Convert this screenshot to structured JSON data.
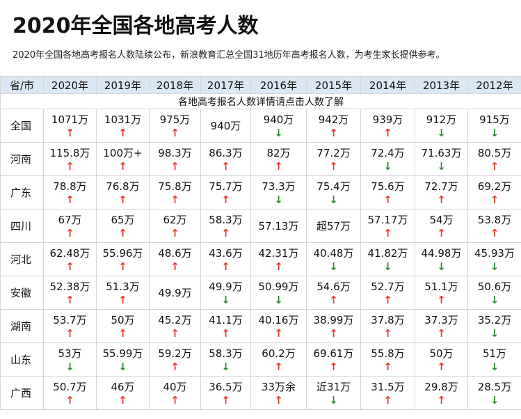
{
  "title": "2020年全国各地高考人数",
  "subtitle": "2020年全国各地高考报名人数陆续公布，新浪教育汇总全国31地历年高考报名人数，为考生家长提供参考。",
  "table": {
    "header_first": "省/市",
    "years": [
      "2020年",
      "2019年",
      "2018年",
      "2017年",
      "2016年",
      "2015年",
      "2014年",
      "2013年",
      "2012年"
    ],
    "note": "各地高考报名人数详情请点击人数了解",
    "rows": [
      {
        "name": "全国",
        "cells": [
          {
            "v": "1071万",
            "a": "up"
          },
          {
            "v": "1031万",
            "a": "up"
          },
          {
            "v": "975万",
            "a": "up"
          },
          {
            "v": "940万",
            "a": ""
          },
          {
            "v": "940万",
            "a": "down"
          },
          {
            "v": "942万",
            "a": "up"
          },
          {
            "v": "939万",
            "a": "up"
          },
          {
            "v": "912万",
            "a": "down"
          },
          {
            "v": "915万",
            "a": "down"
          }
        ]
      },
      {
        "name": "河南",
        "cells": [
          {
            "v": "115.8万",
            "a": "up"
          },
          {
            "v": "100万+",
            "a": "up"
          },
          {
            "v": "98.3万",
            "a": "up"
          },
          {
            "v": "86.3万",
            "a": "up"
          },
          {
            "v": "82万",
            "a": "up"
          },
          {
            "v": "77.2万",
            "a": "up"
          },
          {
            "v": "72.4万",
            "a": "down"
          },
          {
            "v": "71.63万",
            "a": "down"
          },
          {
            "v": "80.5万",
            "a": "up"
          }
        ]
      },
      {
        "name": "广东",
        "cells": [
          {
            "v": "78.8万",
            "a": "up"
          },
          {
            "v": "76.8万",
            "a": "up"
          },
          {
            "v": "75.8万",
            "a": "up"
          },
          {
            "v": "75.7万",
            "a": "up"
          },
          {
            "v": "73.3万",
            "a": "down"
          },
          {
            "v": "75.4万",
            "a": "down"
          },
          {
            "v": "75.6万",
            "a": "up"
          },
          {
            "v": "72.7万",
            "a": "up"
          },
          {
            "v": "69.2万",
            "a": "up"
          }
        ]
      },
      {
        "name": "四川",
        "cells": [
          {
            "v": "67万",
            "a": "up"
          },
          {
            "v": "65万",
            "a": "up"
          },
          {
            "v": "62万",
            "a": "up"
          },
          {
            "v": "58.3万",
            "a": "up"
          },
          {
            "v": "57.13万",
            "a": ""
          },
          {
            "v": "超57万",
            "a": ""
          },
          {
            "v": "57.17万",
            "a": "up"
          },
          {
            "v": "54万",
            "a": "up"
          },
          {
            "v": "53.8万",
            "a": "up"
          }
        ]
      },
      {
        "name": "河北",
        "cells": [
          {
            "v": "62.48万",
            "a": "up"
          },
          {
            "v": "55.96万",
            "a": "up"
          },
          {
            "v": "48.6万",
            "a": "up"
          },
          {
            "v": "43.6万",
            "a": "up"
          },
          {
            "v": "42.31万",
            "a": "up"
          },
          {
            "v": "40.48万",
            "a": "down"
          },
          {
            "v": "41.82万",
            "a": "down"
          },
          {
            "v": "44.98万",
            "a": "down"
          },
          {
            "v": "45.93万",
            "a": "down"
          }
        ]
      },
      {
        "name": "安徽",
        "cells": [
          {
            "v": "52.38万",
            "a": "up"
          },
          {
            "v": "51.3万",
            "a": "up"
          },
          {
            "v": "49.9万",
            "a": ""
          },
          {
            "v": "49.9万",
            "a": "down"
          },
          {
            "v": "50.99万",
            "a": "down"
          },
          {
            "v": "54.6万",
            "a": "up"
          },
          {
            "v": "52.7万",
            "a": "up"
          },
          {
            "v": "51.1万",
            "a": "up"
          },
          {
            "v": "50.6万",
            "a": "down"
          }
        ]
      },
      {
        "name": "湖南",
        "cells": [
          {
            "v": "53.7万",
            "a": "up"
          },
          {
            "v": "50万",
            "a": "up"
          },
          {
            "v": "45.2万",
            "a": "up"
          },
          {
            "v": "41.1万",
            "a": "up"
          },
          {
            "v": "40.16万",
            "a": "up"
          },
          {
            "v": "38.99万",
            "a": "up"
          },
          {
            "v": "37.8万",
            "a": "up"
          },
          {
            "v": "37.3万",
            "a": "up"
          },
          {
            "v": "35.2万",
            "a": "down"
          }
        ]
      },
      {
        "name": "山东",
        "cells": [
          {
            "v": "53万",
            "a": "down"
          },
          {
            "v": "55.99万",
            "a": "down"
          },
          {
            "v": "59.2万",
            "a": "up"
          },
          {
            "v": "58.3万",
            "a": "down"
          },
          {
            "v": "60.2万",
            "a": "up"
          },
          {
            "v": "69.61万",
            "a": "up"
          },
          {
            "v": "55.8万",
            "a": "up"
          },
          {
            "v": "50万",
            "a": "up"
          },
          {
            "v": "51万",
            "a": "down"
          }
        ]
      },
      {
        "name": "广西",
        "cells": [
          {
            "v": "50.7万",
            "a": "up"
          },
          {
            "v": "46万",
            "a": "up"
          },
          {
            "v": "40万",
            "a": "up"
          },
          {
            "v": "36.5万",
            "a": "up"
          },
          {
            "v": "33万余",
            "a": "up"
          },
          {
            "v": "近31万",
            "a": "down"
          },
          {
            "v": "31.5万",
            "a": "up"
          },
          {
            "v": "29.8万",
            "a": "up"
          },
          {
            "v": "28.5万",
            "a": "down"
          }
        ]
      }
    ]
  },
  "arrows": {
    "up": "↑",
    "down": "↓"
  },
  "colors": {
    "header_bg": "#dbe7f4",
    "up": "#e23b2a",
    "down": "#2e8b2e",
    "border": "#d6d6d6"
  }
}
